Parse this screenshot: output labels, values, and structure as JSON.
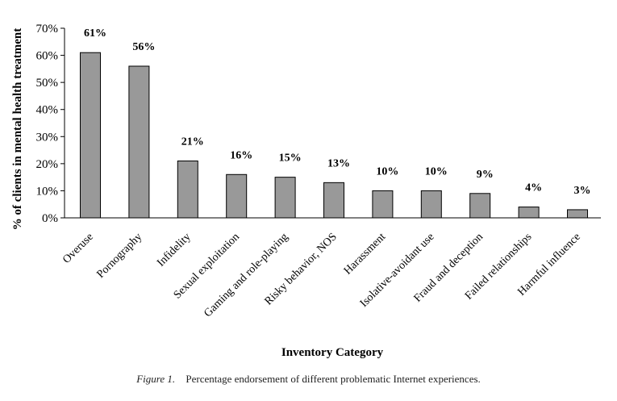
{
  "chart_data": {
    "type": "bar",
    "categories": [
      "Overuse",
      "Pornography",
      "Infidelity",
      "Sexual exploitation",
      "Gaming and role-playing",
      "Risky behavior, NOS",
      "Harassment",
      "Isolative-avoidant use",
      "Fraud and deception",
      "Failed relationships",
      "Harmful influence"
    ],
    "values": [
      61,
      56,
      21,
      16,
      15,
      13,
      10,
      10,
      9,
      4,
      3
    ],
    "data_labels": [
      "61%",
      "56%",
      "21%",
      "16%",
      "15%",
      "13%",
      "10%",
      "10%",
      "9%",
      "4%",
      "3%"
    ],
    "yticks": [
      "0%",
      "10%",
      "20%",
      "30%",
      "40%",
      "50%",
      "60%",
      "70%"
    ],
    "ylim": [
      0,
      70
    ],
    "xlabel": "Inventory Category",
    "ylabel": "% of clients in mental health treatment",
    "grid": false,
    "bar_color": "#999999"
  },
  "caption": {
    "figure_label": "Figure 1.",
    "text": "Percentage endorsement of different problematic Internet experiences."
  }
}
